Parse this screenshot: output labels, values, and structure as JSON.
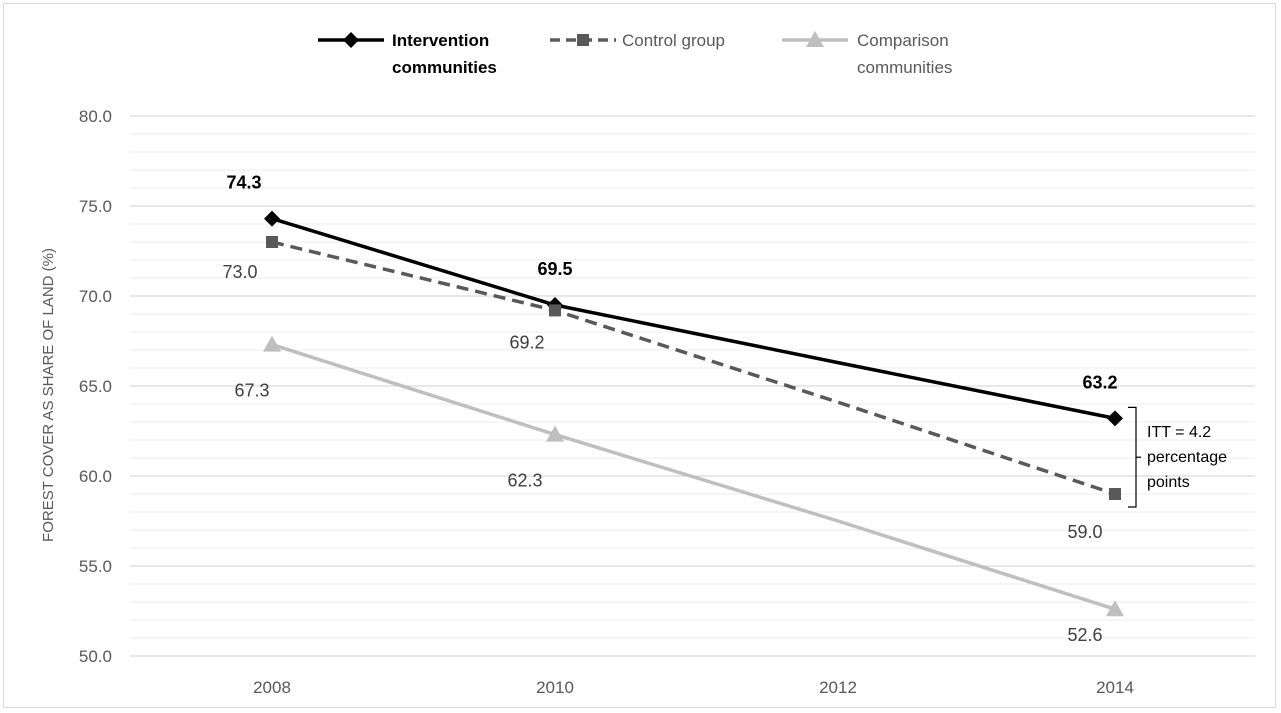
{
  "chart_data": {
    "type": "line",
    "title": "",
    "xlabel": "",
    "ylabel": "FOREST COVER AS SHARE OF LAND (%)",
    "x": [
      "2008",
      "2010",
      "2012",
      "2014"
    ],
    "ylim": [
      50,
      80
    ],
    "yticks": [
      "50.0",
      "55.0",
      "60.0",
      "65.0",
      "70.0",
      "75.0",
      "80.0"
    ],
    "grid": true,
    "legend_position": "top-center",
    "series": [
      {
        "name": "Intervention communities",
        "legend_lines": [
          "Intervention",
          "communities"
        ],
        "values": [
          74.3,
          69.5,
          66.3,
          63.2
        ],
        "labels": [
          "74.3",
          "69.5",
          "",
          "63.2"
        ],
        "color": "#000000",
        "marker": "diamond",
        "dash": "solid"
      },
      {
        "name": "Control group",
        "legend_lines": [
          "Control group"
        ],
        "values": [
          73.0,
          69.2,
          64.1,
          59.0
        ],
        "labels": [
          "73.0",
          "69.2",
          "",
          "59.0"
        ],
        "color": "#595959",
        "marker": "square",
        "dash": "dashed"
      },
      {
        "name": "Comparison communities",
        "legend_lines": [
          "Comparison",
          "communities"
        ],
        "values": [
          67.3,
          62.3,
          57.5,
          52.6
        ],
        "labels": [
          "67.3",
          "62.3",
          "",
          "52.6"
        ],
        "color": "#bfbfbf",
        "marker": "triangle",
        "dash": "solid"
      }
    ],
    "annotation": {
      "lines": [
        "ITT = 4.2",
        "percentage",
        "points"
      ]
    }
  }
}
